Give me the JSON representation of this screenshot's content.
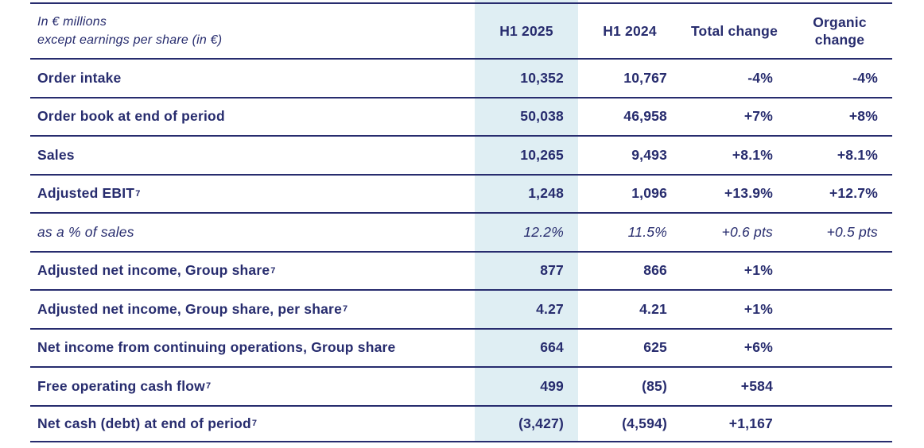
{
  "table": {
    "unit_note_line1": "In € millions",
    "unit_note_line2": "except earnings per share (in €)",
    "columns": [
      "H1 2025",
      "H1 2024",
      "Total change",
      "Organic change"
    ],
    "rows": [
      {
        "label": "Order intake",
        "sup": "",
        "style": "bold",
        "h1_2025": "10,352",
        "h1_2024": "10,767",
        "total_change": "-4%",
        "organic_change": "-4%"
      },
      {
        "label": "Order book at end of period",
        "sup": "",
        "style": "bold",
        "h1_2025": "50,038",
        "h1_2024": "46,958",
        "total_change": "+7%",
        "organic_change": "+8%"
      },
      {
        "label": "Sales",
        "sup": "",
        "style": "bold",
        "h1_2025": "10,265",
        "h1_2024": "9,493",
        "total_change": "+8.1%",
        "organic_change": "+8.1%"
      },
      {
        "label": "Adjusted EBIT",
        "sup": "7",
        "style": "bold",
        "h1_2025": "1,248",
        "h1_2024": "1,096",
        "total_change": "+13.9%",
        "organic_change": "+12.7%"
      },
      {
        "label": "as a % of sales",
        "sup": "",
        "style": "italic",
        "h1_2025": "12.2%",
        "h1_2024": "11.5%",
        "total_change": "+0.6 pts",
        "organic_change": "+0.5 pts"
      },
      {
        "label": "Adjusted net income, Group share",
        "sup": "7",
        "style": "bold",
        "h1_2025": "877",
        "h1_2024": "866",
        "total_change": "+1%",
        "organic_change": ""
      },
      {
        "label": "Adjusted net income, Group share, per share",
        "sup": "7",
        "style": "bold",
        "h1_2025": "4.27",
        "h1_2024": "4.21",
        "total_change": "+1%",
        "organic_change": ""
      },
      {
        "label": "Net income from continuing operations, Group share",
        "sup": "",
        "style": "bold",
        "h1_2025": "664",
        "h1_2024": "625",
        "total_change": "+6%",
        "organic_change": ""
      },
      {
        "label": "Free operating cash flow",
        "sup": "7",
        "style": "bold",
        "h1_2025": "499",
        "h1_2024": "(85)",
        "total_change": "+584",
        "organic_change": ""
      },
      {
        "label": "Net cash (debt) at end of period",
        "sup": "7",
        "style": "bold",
        "h1_2025": "(3,427)",
        "h1_2024": "(4,594)",
        "total_change": "+1,167",
        "organic_change": ""
      }
    ]
  },
  "colors": {
    "text_navy": "#272c6e",
    "rule_navy": "#272c6e",
    "highlight_column_bg": "#dfeef3",
    "page_bg": "#ffffff"
  }
}
